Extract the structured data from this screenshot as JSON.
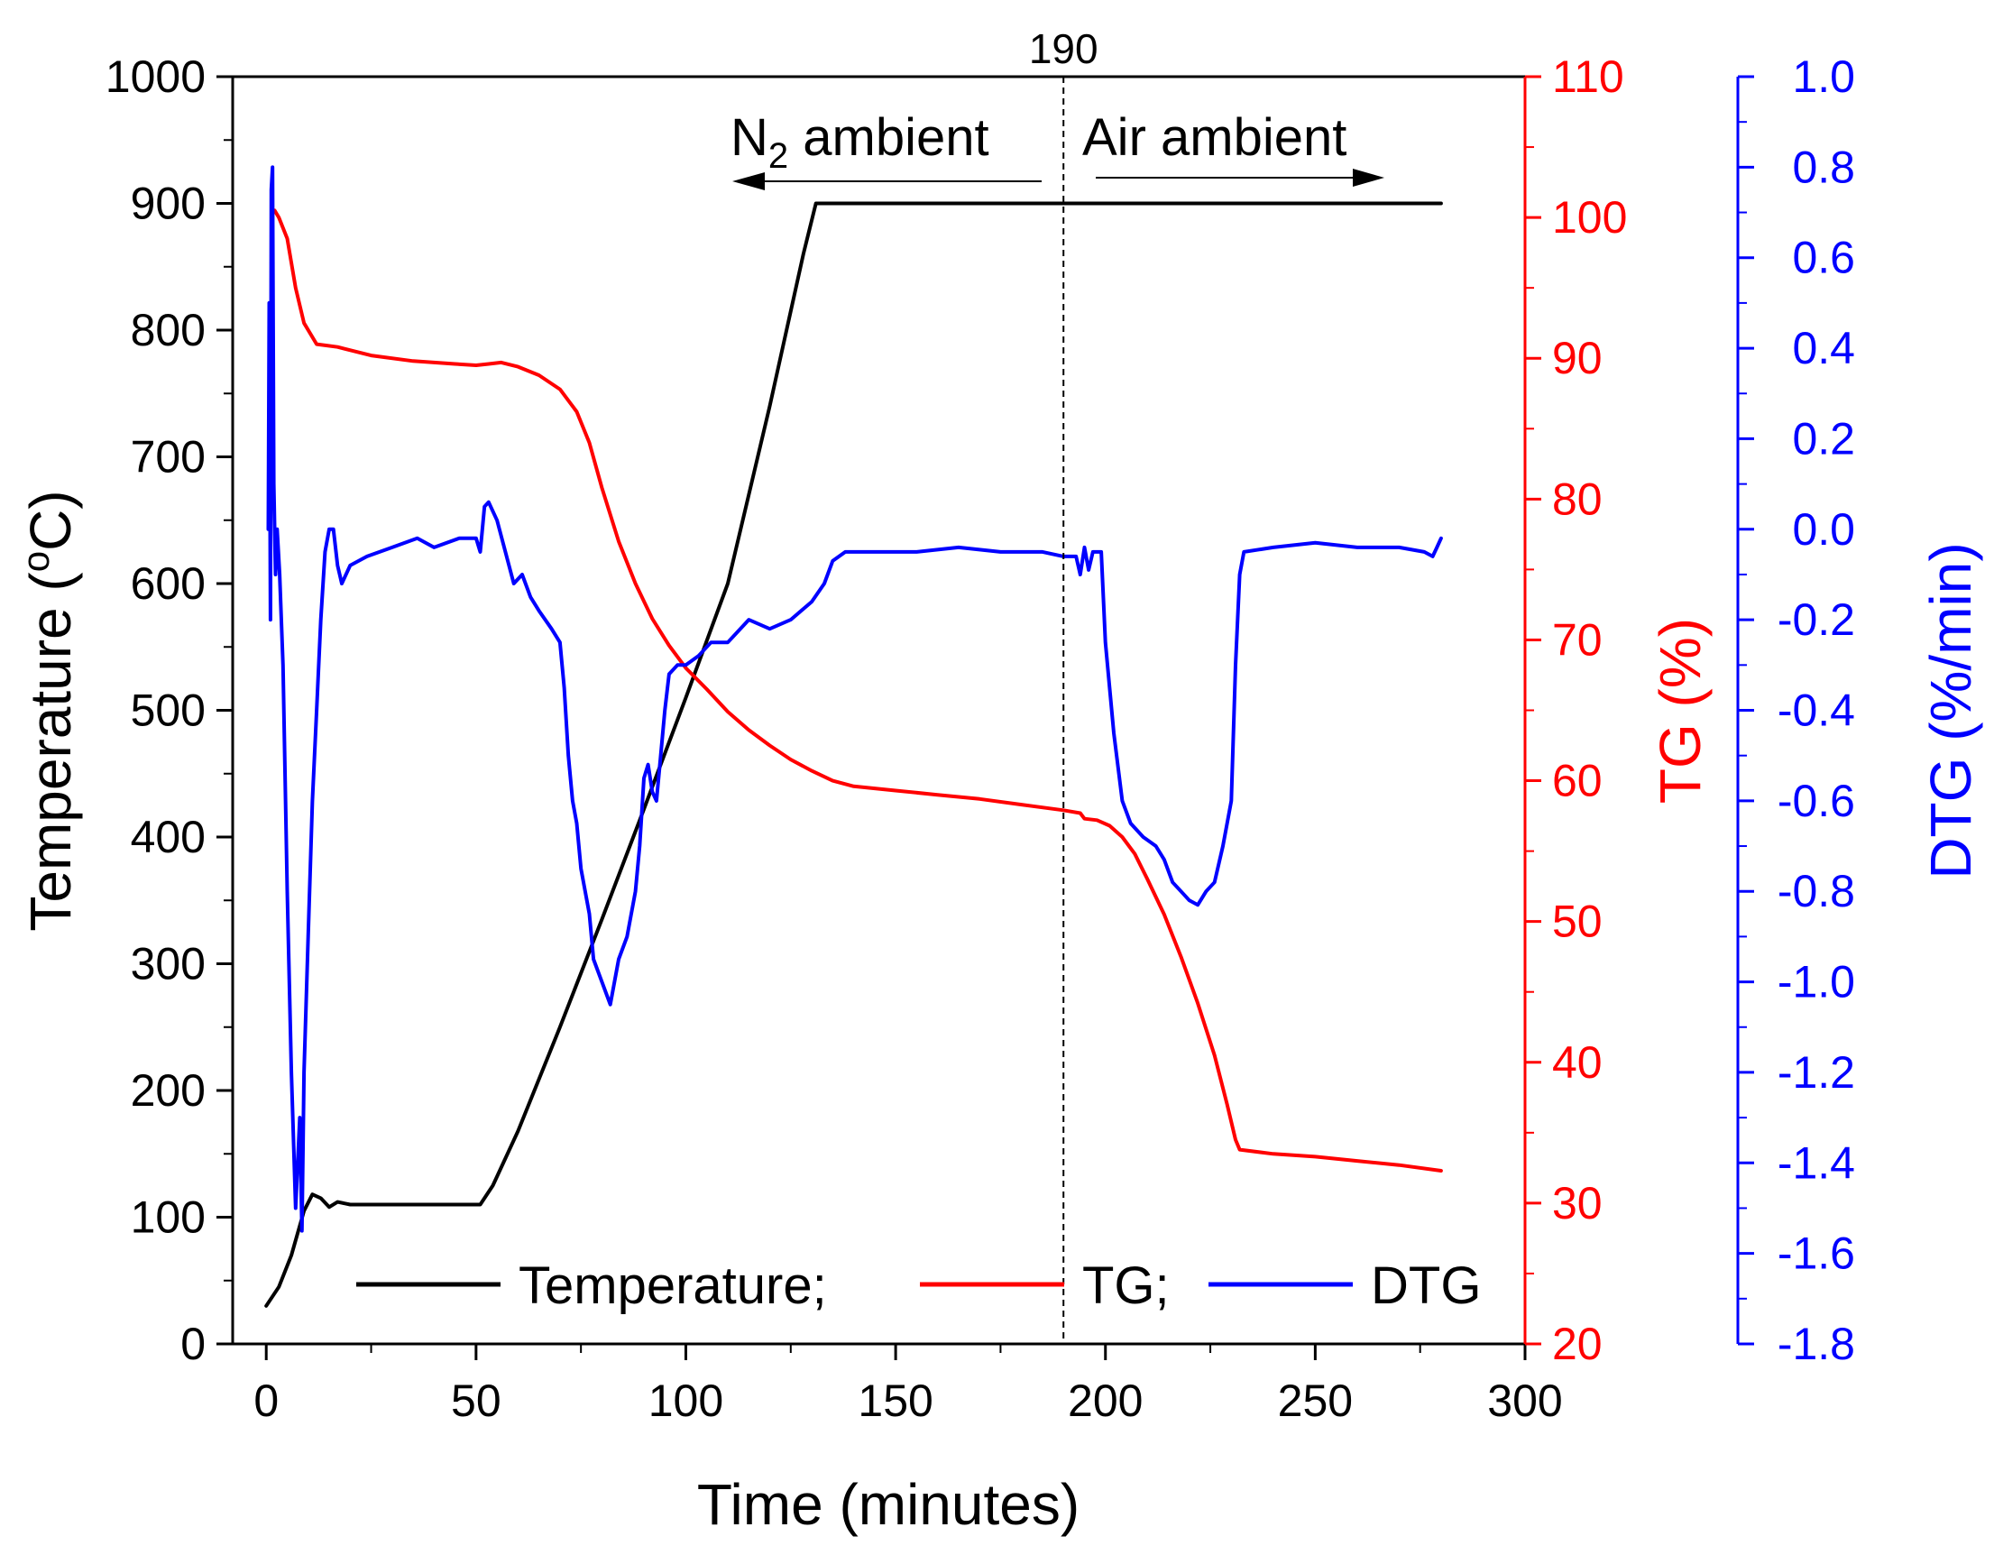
{
  "chart_data": {
    "type": "line",
    "title": "",
    "xlabel": "Time (minutes)",
    "xlim": [
      -8,
      300
    ],
    "xticks": [
      0,
      50,
      100,
      150,
      200,
      250,
      300
    ],
    "axes": {
      "left": {
        "label": "Temperature (°C)",
        "label_main": "Temperature (",
        "label_sup": "o",
        "label_tail": "C)",
        "range": [
          0,
          1000
        ],
        "ticks": [
          0,
          100,
          200,
          300,
          400,
          500,
          600,
          700,
          800,
          900,
          1000
        ],
        "color": "#000000"
      },
      "right_tg": {
        "label": "TG (%)",
        "range": [
          20,
          110
        ],
        "ticks": [
          20,
          30,
          40,
          50,
          60,
          70,
          80,
          90,
          100,
          110
        ],
        "color": "#ff0000"
      },
      "right_dtg": {
        "label": "DTG (%/min)",
        "range": [
          -1.8,
          1.0
        ],
        "ticks": [
          -1.8,
          -1.6,
          -1.4,
          -1.2,
          -1.0,
          -0.8,
          -0.6,
          -0.4,
          -0.2,
          0.0,
          0.2,
          0.4,
          0.6,
          0.8,
          1.0
        ],
        "color": "#0000ff"
      }
    },
    "annotations": {
      "vline": {
        "x": 190,
        "label": "190"
      },
      "n2": {
        "main": "N",
        "sub": "2",
        "tail": " ambient",
        "text": "N2 ambient"
      },
      "air": {
        "text": "Air ambient"
      }
    },
    "legend": {
      "placement": "bottom-right",
      "entries": [
        {
          "label": "Temperature;",
          "color": "#000000"
        },
        {
          "label": "TG;",
          "color": "#ff0000"
        },
        {
          "label": "DTG",
          "color": "#0000ff"
        }
      ]
    },
    "series": [
      {
        "name": "Temperature",
        "axis": "left",
        "color": "#000000",
        "points": [
          [
            0,
            30
          ],
          [
            3,
            45
          ],
          [
            6,
            70
          ],
          [
            9,
            105
          ],
          [
            11,
            118
          ],
          [
            13,
            115
          ],
          [
            15,
            108
          ],
          [
            17,
            112
          ],
          [
            20,
            110
          ],
          [
            30,
            110
          ],
          [
            40,
            110
          ],
          [
            51,
            110
          ],
          [
            54,
            125
          ],
          [
            60,
            168
          ],
          [
            70,
            250
          ],
          [
            80,
            335
          ],
          [
            90,
            422
          ],
          [
            100,
            510
          ],
          [
            110,
            600
          ],
          [
            120,
            740
          ],
          [
            128,
            860
          ],
          [
            131,
            900
          ],
          [
            150,
            900
          ],
          [
            170,
            900
          ],
          [
            190,
            900
          ],
          [
            210,
            900
          ],
          [
            230,
            900
          ],
          [
            250,
            900
          ],
          [
            270,
            900
          ],
          [
            280,
            900
          ]
        ]
      },
      {
        "name": "TG",
        "axis": "right_tg",
        "color": "#ff0000",
        "points": [
          [
            2,
            100.5
          ],
          [
            3,
            100
          ],
          [
            5,
            98.5
          ],
          [
            7,
            95
          ],
          [
            9,
            92.5
          ],
          [
            12,
            91
          ],
          [
            17,
            90.8
          ],
          [
            25,
            90.2
          ],
          [
            35,
            89.8
          ],
          [
            45,
            89.6
          ],
          [
            50,
            89.5
          ],
          [
            53,
            89.6
          ],
          [
            56,
            89.7
          ],
          [
            60,
            89.4
          ],
          [
            65,
            88.8
          ],
          [
            70,
            87.8
          ],
          [
            74,
            86.2
          ],
          [
            77,
            84
          ],
          [
            80,
            80.8
          ],
          [
            84,
            77
          ],
          [
            88,
            74
          ],
          [
            92,
            71.5
          ],
          [
            96,
            69.6
          ],
          [
            100,
            68
          ],
          [
            105,
            66.5
          ],
          [
            110,
            64.9
          ],
          [
            115,
            63.6
          ],
          [
            120,
            62.5
          ],
          [
            125,
            61.5
          ],
          [
            130,
            60.7
          ],
          [
            135,
            60
          ],
          [
            140,
            59.6
          ],
          [
            150,
            59.3
          ],
          [
            160,
            59
          ],
          [
            170,
            58.7
          ],
          [
            180,
            58.3
          ],
          [
            190,
            57.9
          ],
          [
            194,
            57.7
          ],
          [
            195,
            57.3
          ],
          [
            198,
            57.2
          ],
          [
            201,
            56.8
          ],
          [
            204,
            56
          ],
          [
            207,
            54.8
          ],
          [
            210,
            53
          ],
          [
            214,
            50.5
          ],
          [
            218,
            47.5
          ],
          [
            222,
            44.2
          ],
          [
            226,
            40.5
          ],
          [
            229,
            37
          ],
          [
            231,
            34.5
          ],
          [
            232,
            33.8
          ],
          [
            240,
            33.5
          ],
          [
            250,
            33.3
          ],
          [
            260,
            33
          ],
          [
            270,
            32.7
          ],
          [
            280,
            32.3
          ]
        ]
      },
      {
        "name": "DTG",
        "axis": "right_dtg",
        "color": "#0000ff",
        "points": [
          [
            0.5,
            0.0
          ],
          [
            0.7,
            0.5
          ],
          [
            1,
            -0.2
          ],
          [
            1.2,
            0.75
          ],
          [
            1.5,
            0.8
          ],
          [
            1.8,
            0.1
          ],
          [
            2.2,
            -0.1
          ],
          [
            2.6,
            0.0
          ],
          [
            3.2,
            -0.1
          ],
          [
            4,
            -0.3
          ],
          [
            5,
            -0.8
          ],
          [
            6,
            -1.2
          ],
          [
            7,
            -1.5
          ],
          [
            8,
            -1.3
          ],
          [
            8.5,
            -1.55
          ],
          [
            9,
            -1.2
          ],
          [
            10,
            -0.9
          ],
          [
            11,
            -0.6
          ],
          [
            12,
            -0.4
          ],
          [
            13,
            -0.2
          ],
          [
            14,
            -0.05
          ],
          [
            15,
            0.0
          ],
          [
            16,
            0.0
          ],
          [
            17,
            -0.08
          ],
          [
            18,
            -0.12
          ],
          [
            20,
            -0.08
          ],
          [
            24,
            -0.06
          ],
          [
            30,
            -0.04
          ],
          [
            36,
            -0.02
          ],
          [
            40,
            -0.04
          ],
          [
            46,
            -0.02
          ],
          [
            50,
            -0.02
          ],
          [
            51,
            -0.05
          ],
          [
            52,
            0.05
          ],
          [
            53,
            0.06
          ],
          [
            55,
            0.02
          ],
          [
            57,
            -0.05
          ],
          [
            59,
            -0.12
          ],
          [
            61,
            -0.1
          ],
          [
            63,
            -0.15
          ],
          [
            65,
            -0.18
          ],
          [
            68,
            -0.22
          ],
          [
            70,
            -0.25
          ],
          [
            71,
            -0.35
          ],
          [
            72,
            -0.5
          ],
          [
            73,
            -0.6
          ],
          [
            74,
            -0.65
          ],
          [
            75,
            -0.75
          ],
          [
            77,
            -0.85
          ],
          [
            78,
            -0.95
          ],
          [
            80,
            -1.0
          ],
          [
            82,
            -1.05
          ],
          [
            84,
            -0.95
          ],
          [
            86,
            -0.9
          ],
          [
            88,
            -0.8
          ],
          [
            89,
            -0.7
          ],
          [
            90,
            -0.55
          ],
          [
            91,
            -0.52
          ],
          [
            92,
            -0.58
          ],
          [
            93,
            -0.6
          ],
          [
            94,
            -0.5
          ],
          [
            95,
            -0.4
          ],
          [
            96,
            -0.32
          ],
          [
            98,
            -0.3
          ],
          [
            100,
            -0.3
          ],
          [
            103,
            -0.28
          ],
          [
            106,
            -0.25
          ],
          [
            110,
            -0.25
          ],
          [
            115,
            -0.2
          ],
          [
            120,
            -0.22
          ],
          [
            125,
            -0.2
          ],
          [
            130,
            -0.16
          ],
          [
            133,
            -0.12
          ],
          [
            135,
            -0.07
          ],
          [
            138,
            -0.05
          ],
          [
            145,
            -0.05
          ],
          [
            155,
            -0.05
          ],
          [
            165,
            -0.04
          ],
          [
            175,
            -0.05
          ],
          [
            185,
            -0.05
          ],
          [
            190,
            -0.06
          ],
          [
            193,
            -0.06
          ],
          [
            194,
            -0.1
          ],
          [
            195,
            -0.04
          ],
          [
            196,
            -0.09
          ],
          [
            197,
            -0.05
          ],
          [
            199,
            -0.05
          ],
          [
            200,
            -0.25
          ],
          [
            202,
            -0.45
          ],
          [
            204,
            -0.6
          ],
          [
            206,
            -0.65
          ],
          [
            209,
            -0.68
          ],
          [
            212,
            -0.7
          ],
          [
            214,
            -0.73
          ],
          [
            216,
            -0.78
          ],
          [
            218,
            -0.8
          ],
          [
            220,
            -0.82
          ],
          [
            222,
            -0.83
          ],
          [
            224,
            -0.8
          ],
          [
            226,
            -0.78
          ],
          [
            228,
            -0.7
          ],
          [
            230,
            -0.6
          ],
          [
            231,
            -0.3
          ],
          [
            232,
            -0.1
          ],
          [
            233,
            -0.05
          ],
          [
            240,
            -0.04
          ],
          [
            250,
            -0.03
          ],
          [
            260,
            -0.04
          ],
          [
            270,
            -0.04
          ],
          [
            276,
            -0.05
          ],
          [
            278,
            -0.06
          ],
          [
            279,
            -0.04
          ],
          [
            280,
            -0.02
          ]
        ]
      }
    ]
  }
}
